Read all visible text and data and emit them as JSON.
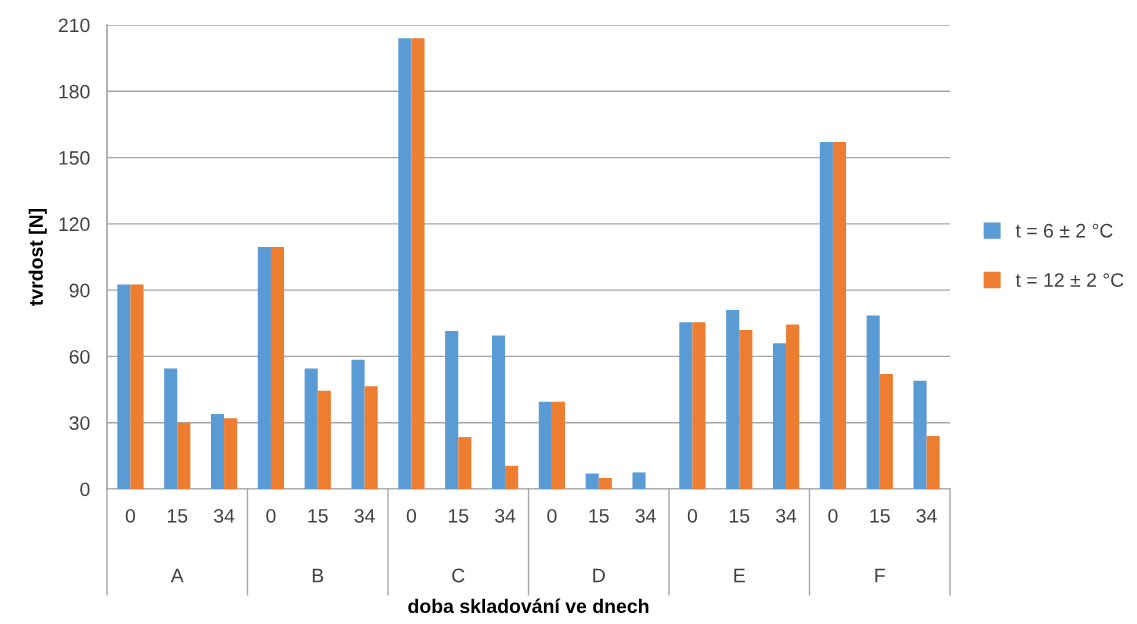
{
  "chart_data": {
    "type": "bar",
    "xlabel": "doba skladování ve dnech",
    "ylabel": "tvrdost [N]",
    "categories": [
      "0",
      "15",
      "34",
      "0",
      "15",
      "34",
      "0",
      "15",
      "34",
      "0",
      "15",
      "34",
      "0",
      "15",
      "34",
      "0",
      "15",
      "34"
    ],
    "annotations": [
      "A",
      "B",
      "C",
      "D",
      "E",
      "F"
    ],
    "series": [
      {
        "name": "t = 6 ± 2 °C",
        "color": "#5b9bd5",
        "values": [
          92.5,
          54.5,
          34,
          109.5,
          54.5,
          58.5,
          204,
          71.5,
          69.5,
          39.5,
          7,
          7.5,
          75.5,
          81,
          66,
          157,
          78.5,
          49
        ]
      },
      {
        "name": "t = 12 ± 2 °C",
        "color": "#ed7d31",
        "values": [
          92.5,
          30,
          32,
          109.5,
          44.5,
          46.5,
          204,
          23.5,
          10.5,
          39.5,
          5,
          null,
          75.5,
          72,
          74.5,
          157,
          52,
          24
        ]
      }
    ],
    "ylim": [
      0,
      210
    ],
    "yticks": [
      0,
      30,
      60,
      90,
      120,
      150,
      180,
      210
    ],
    "grid": "y",
    "legend": "right"
  }
}
